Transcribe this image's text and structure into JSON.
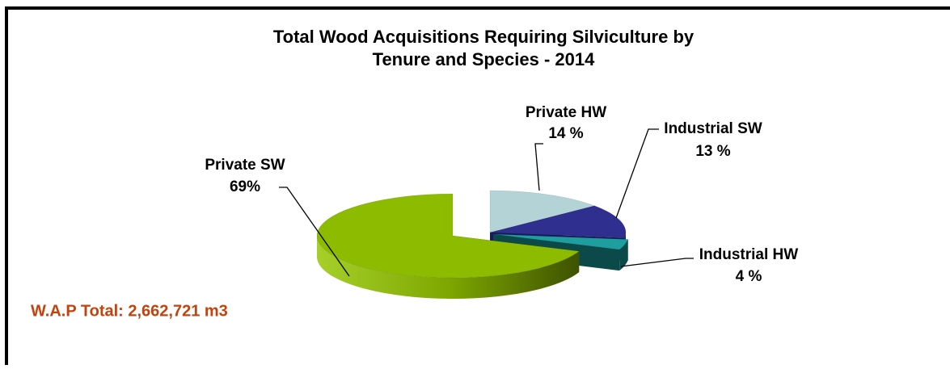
{
  "chart_data": {
    "type": "pie3d",
    "title": [
      "Total Wood Acquisitions Requiring Silviculture by",
      "Tenure and Species - 2014"
    ],
    "categories": [
      "Private HW",
      "Industrial SW",
      "Industrial HW",
      "Private SW"
    ],
    "values": [
      14,
      13,
      4,
      69
    ],
    "value_labels": [
      "14 %",
      "13 %",
      "4 %",
      "69%"
    ],
    "colors": [
      "#b3d3d6",
      "#2f2f90",
      "#1e9e9e",
      "#8cbb00"
    ],
    "wall_colors": [
      "#6e8a8c",
      "#1a1a5c",
      "#0c4a4a",
      "#5a7a00"
    ],
    "annotation": "W.A.P Total: 2,662,721 m3"
  }
}
